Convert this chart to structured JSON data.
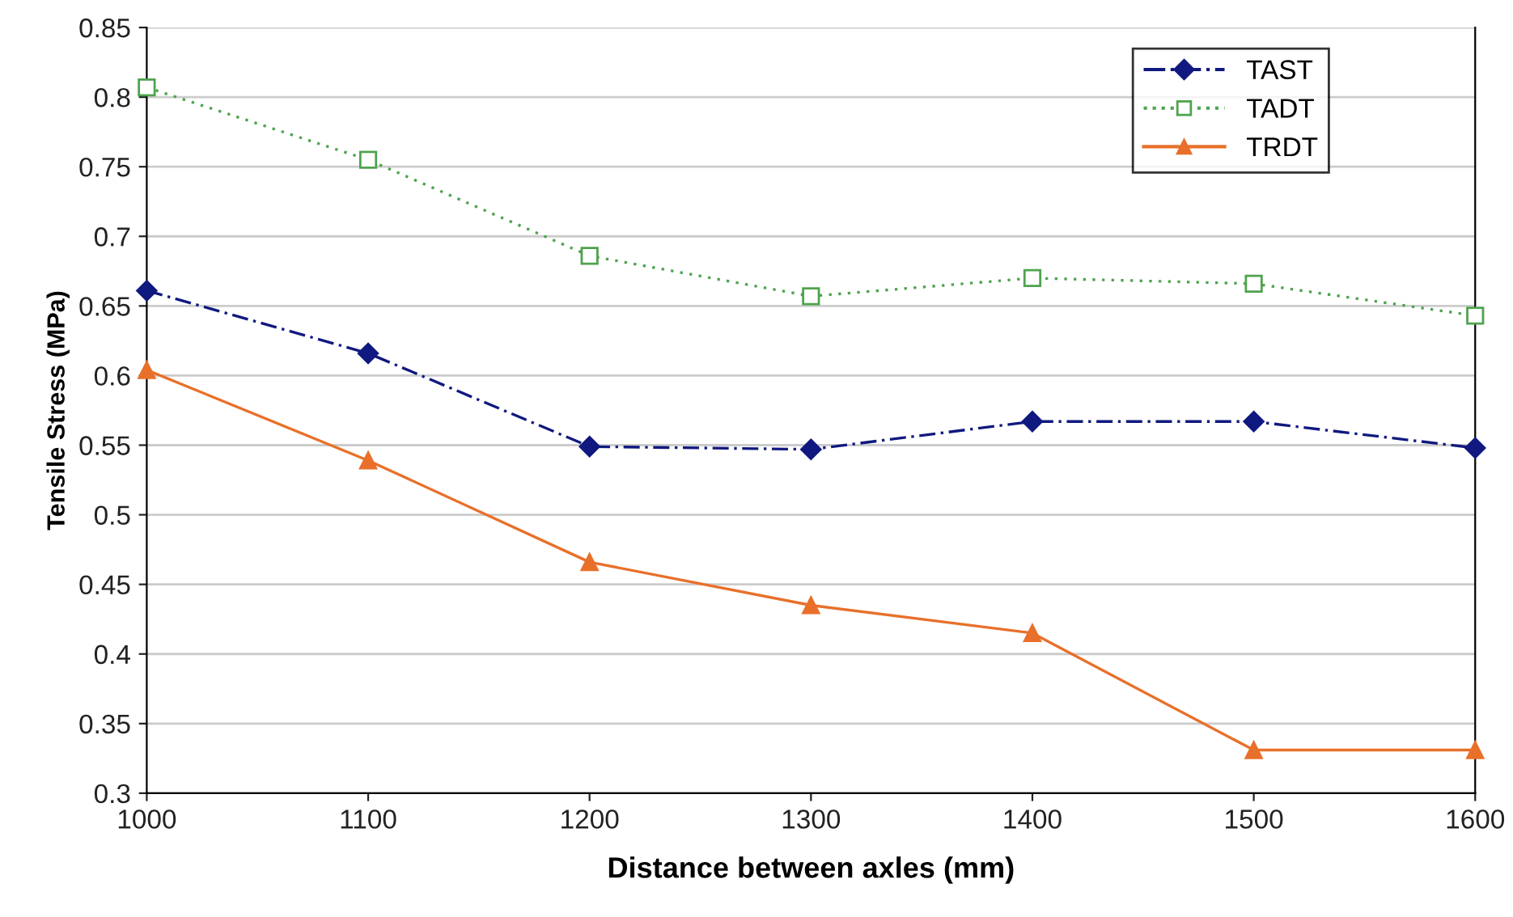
{
  "chart_data": {
    "type": "line",
    "xlabel": "Distance between axles (mm)",
    "ylabel": "Tensile Stress (MPa)",
    "x": [
      1000,
      1100,
      1200,
      1300,
      1400,
      1500,
      1600
    ],
    "series": [
      {
        "name": "TAST",
        "color": "#10197f",
        "marker": "diamond",
        "line_style": "dashed",
        "values": [
          0.661,
          0.616,
          0.549,
          0.547,
          0.567,
          0.567,
          0.548
        ]
      },
      {
        "name": "TADT",
        "color": "#4ea34e",
        "marker": "square",
        "line_style": "dotted",
        "values": [
          0.807,
          0.755,
          0.686,
          0.657,
          0.67,
          0.666,
          0.643
        ]
      },
      {
        "name": "TRDT",
        "color": "#e8702a",
        "marker": "triangle",
        "line_style": "solid",
        "values": [
          0.604,
          0.539,
          0.466,
          0.435,
          0.415,
          0.331,
          0.331
        ]
      }
    ],
    "xlim": [
      1000,
      1600
    ],
    "xticks": [
      1000,
      1100,
      1200,
      1300,
      1400,
      1500,
      1600
    ],
    "ylim": [
      0.3,
      0.85
    ],
    "yticks": [
      0.3,
      0.35,
      0.4,
      0.45,
      0.5,
      0.55,
      0.6,
      0.65,
      0.7,
      0.75,
      0.8,
      0.85
    ],
    "grid": "y",
    "legend": "top right"
  }
}
